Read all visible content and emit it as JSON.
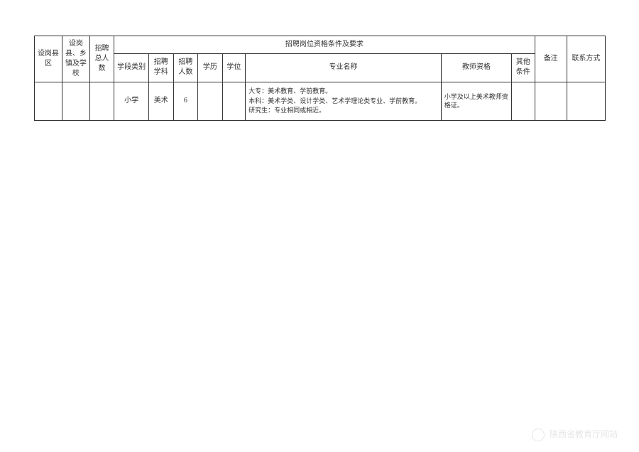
{
  "table": {
    "headers": {
      "county": "设岗县区",
      "school": "设岗县、乡镇及学校",
      "total": "招聘总人数",
      "requirements_group": "招聘岗位资格条件及要求",
      "stage": "学段类别",
      "subject": "招聘学科",
      "count": "招聘人数",
      "education": "学历",
      "degree": "学位",
      "major": "专业名称",
      "qualification": "教师资格",
      "other": "其他条件",
      "remark": "备注",
      "contact": "联系方式"
    },
    "rows": [
      {
        "county": "",
        "school": "",
        "total": "",
        "stage": "小学",
        "subject": "美术",
        "count": "6",
        "education": "",
        "degree": "",
        "major": "大专：美术教育、学前教育。\n本科：美术学类、设计学类、艺术学理论类专业、学前教育。\n研究生：专业相同或相近。",
        "qualification": "小学及以上美术教师资格证。",
        "other": "",
        "remark": "",
        "contact": ""
      }
    ]
  },
  "watermark": "陕西省教育厅网站",
  "styles": {
    "border_color": "#333333",
    "text_color": "#333333",
    "background_color": "#ffffff",
    "watermark_color": "#e6e6e6",
    "header_fontsize": 10,
    "data_fontsize": 10,
    "major_fontsize": 9
  }
}
